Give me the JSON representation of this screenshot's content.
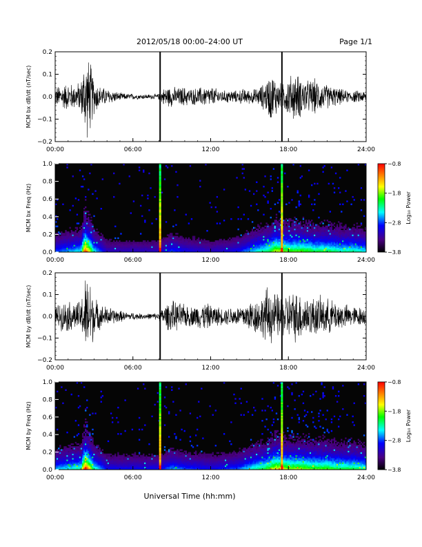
{
  "header": {
    "title": "2012/05/18  00:00–24:00 UT",
    "page": "Page 1/1"
  },
  "footer": {
    "xlabel": "Universal Time (hh:mm)"
  },
  "colors": {
    "spectrogram_background": "#050505",
    "trace": "#000000",
    "colormap": [
      "#000000",
      "#4b0082",
      "#0000ff",
      "#00ffff",
      "#00ff00",
      "#ffff00",
      "#ff8000",
      "#ff0000"
    ]
  },
  "chart_data": [
    {
      "type": "line",
      "title": "",
      "ylabel": "MCM bx dB/dt (nT/sec)",
      "xlabel": "",
      "x_ticks": [
        "00:00",
        "06:00",
        "12:00",
        "18:00",
        "24:00"
      ],
      "xlim": [
        0,
        24
      ],
      "ylim": [
        -0.2,
        0.2
      ],
      "y_ticks": [
        "0.2",
        "0.1",
        "0.0",
        "−0.1",
        "−0.2"
      ],
      "vertical_markers_hours": [
        8.1,
        17.5
      ],
      "series": [
        {
          "x": [
            0,
            0.5,
            1,
            1.5,
            2,
            2.3,
            2.5,
            2.7,
            3,
            3.5,
            4,
            4.5,
            5,
            5.5,
            6,
            6.5,
            7,
            7.5,
            8,
            8.5,
            9,
            9.5,
            10,
            10.5,
            11,
            11.5,
            12,
            12.5,
            13,
            13.5,
            14,
            14.5,
            15,
            15.5,
            16,
            16.3,
            16.6,
            17,
            17.5,
            18,
            18.5,
            19,
            19.5,
            20,
            20.5,
            21,
            21.5,
            22,
            22.5,
            23,
            23.5,
            24
          ],
          "amplitude": [
            0.05,
            0.06,
            0.07,
            0.06,
            0.08,
            0.2,
            0.2,
            0.18,
            0.09,
            0.05,
            0.04,
            0.03,
            0.02,
            0.015,
            0.015,
            0.012,
            0.012,
            0.012,
            0.015,
            0.05,
            0.05,
            0.045,
            0.05,
            0.04,
            0.045,
            0.05,
            0.05,
            0.04,
            0.03,
            0.035,
            0.03,
            0.04,
            0.035,
            0.04,
            0.06,
            0.08,
            0.12,
            0.1,
            0.06,
            0.1,
            0.12,
            0.1,
            0.08,
            0.09,
            0.07,
            0.06,
            0.05,
            0.04,
            0.03,
            0.03,
            0.03,
            0.03
          ]
        }
      ]
    },
    {
      "type": "heatmap",
      "title": "",
      "ylabel": "MCM bx Freq (Hz)",
      "xlabel": "",
      "x_ticks": [
        "00:00",
        "06:00",
        "12:00",
        "18:00",
        "24:00"
      ],
      "xlim": [
        0,
        24
      ],
      "ylim": [
        0,
        1.0
      ],
      "y_ticks": [
        "1.0",
        "0.8",
        "0.6",
        "0.4",
        "0.2",
        "0.0"
      ],
      "vertical_markers_hours": [
        8.1,
        17.5
      ],
      "colorbar": {
        "label": "Log₁₀ Power",
        "range": [
          -3.8,
          -0.8
        ],
        "ticks": [
          "−0.8",
          "−1.8",
          "−2.8",
          "−3.8"
        ]
      },
      "activity_hours": [
        0,
        1,
        2,
        2.3,
        2.6,
        3,
        4,
        8.1,
        9,
        10,
        12,
        14,
        16.5,
        17,
        17.5,
        18,
        19,
        20,
        21,
        22,
        23,
        24
      ],
      "activity_level": [
        0.3,
        0.35,
        0.4,
        0.9,
        0.7,
        0.4,
        0.2,
        0.2,
        0.3,
        0.25,
        0.2,
        0.25,
        0.5,
        0.65,
        0.6,
        0.55,
        0.55,
        0.5,
        0.5,
        0.45,
        0.45,
        0.4
      ]
    },
    {
      "type": "line",
      "title": "",
      "ylabel": "MCM by dB/dt (nT/sec)",
      "xlabel": "",
      "x_ticks": [
        "00:00",
        "06:00",
        "12:00",
        "18:00",
        "24:00"
      ],
      "xlim": [
        0,
        24
      ],
      "ylim": [
        -0.2,
        0.2
      ],
      "y_ticks": [
        "0.2",
        "0.1",
        "0.0",
        "−0.1",
        "−0.2"
      ],
      "vertical_markers_hours": [
        8.1,
        17.5
      ],
      "series": [
        {
          "x": [
            0,
            0.5,
            1,
            1.5,
            2,
            2.3,
            2.5,
            2.7,
            3,
            3.5,
            4,
            4.5,
            5,
            5.5,
            6,
            6.5,
            7,
            7.5,
            8,
            8.5,
            9,
            9.5,
            10,
            10.5,
            11,
            11.5,
            12,
            12.5,
            13,
            13.5,
            14,
            14.5,
            15,
            15.5,
            16,
            16.3,
            16.6,
            17,
            17.5,
            18,
            18.5,
            19,
            19.5,
            20,
            20.5,
            21,
            21.5,
            22,
            22.5,
            23,
            23.5,
            24
          ],
          "amplitude": [
            0.06,
            0.07,
            0.08,
            0.07,
            0.08,
            0.2,
            0.2,
            0.2,
            0.1,
            0.06,
            0.05,
            0.04,
            0.03,
            0.02,
            0.02,
            0.015,
            0.015,
            0.015,
            0.02,
            0.06,
            0.08,
            0.07,
            0.06,
            0.05,
            0.06,
            0.07,
            0.06,
            0.05,
            0.04,
            0.05,
            0.05,
            0.06,
            0.08,
            0.09,
            0.1,
            0.15,
            0.14,
            0.12,
            0.1,
            0.12,
            0.13,
            0.12,
            0.1,
            0.1,
            0.1,
            0.09,
            0.08,
            0.07,
            0.06,
            0.05,
            0.05,
            0.04
          ]
        }
      ]
    },
    {
      "type": "heatmap",
      "title": "",
      "ylabel": "MCM by Freq (Hz)",
      "xlabel": "",
      "x_ticks": [
        "00:00",
        "06:00",
        "12:00",
        "18:00",
        "24:00"
      ],
      "xlim": [
        0,
        24
      ],
      "ylim": [
        0,
        1.0
      ],
      "y_ticks": [
        "1.0",
        "0.8",
        "0.6",
        "0.4",
        "0.2",
        "0.0"
      ],
      "vertical_markers_hours": [
        8.1,
        17.5
      ],
      "colorbar": {
        "label": "Log₁₀ Power",
        "range": [
          -3.8,
          -0.8
        ],
        "ticks": [
          "−0.8",
          "−1.8",
          "−2.8",
          "−3.8"
        ]
      },
      "activity_hours": [
        0,
        1,
        2,
        2.3,
        2.6,
        3,
        4,
        8.1,
        9,
        10,
        12,
        14,
        16.5,
        17,
        17.5,
        18,
        19,
        20,
        21,
        22,
        23,
        24
      ],
      "activity_level": [
        0.35,
        0.4,
        0.45,
        0.95,
        0.75,
        0.45,
        0.25,
        0.25,
        0.35,
        0.3,
        0.25,
        0.3,
        0.55,
        0.7,
        0.65,
        0.6,
        0.6,
        0.55,
        0.55,
        0.5,
        0.5,
        0.45
      ]
    }
  ]
}
